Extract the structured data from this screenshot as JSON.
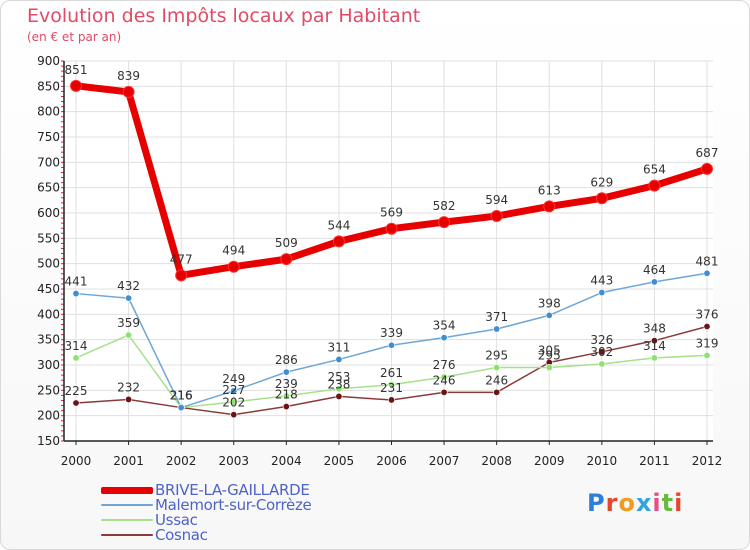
{
  "header": {
    "title": "Evolution des Impôts locaux par Habitant",
    "subtitle": "(en € et par an)"
  },
  "logo": {
    "text": "Proxiti",
    "letter_colors": [
      "#2e7fd6",
      "#e8452d",
      "#f29b1d",
      "#33a3dc",
      "#e84c8a",
      "#68b93f",
      "#e8452d"
    ]
  },
  "colors": {
    "title": "#e24a66",
    "legend_text": "#4d63c8",
    "grid": "#e0e0e0",
    "axis": "#222222"
  },
  "chart_data": {
    "type": "line",
    "title": "Evolution des Impôts locaux par Habitant",
    "subtitle": "(en € et par an)",
    "categories": [
      "2000",
      "2001",
      "2002",
      "2003",
      "2004",
      "2005",
      "2006",
      "2007",
      "2008",
      "2009",
      "2010",
      "2011",
      "2012"
    ],
    "ylim": [
      150,
      900
    ],
    "yticks": [
      150,
      200,
      250,
      300,
      350,
      400,
      450,
      500,
      550,
      600,
      650,
      700,
      750,
      800,
      850,
      900
    ],
    "grid": true,
    "legend_position": "bottom-left",
    "series": [
      {
        "name": "BRIVE-LA-GAILLARDE",
        "color": "#e60000",
        "point_color": "#e60000",
        "width": 7,
        "values": [
          851,
          839,
          477,
          494,
          509,
          544,
          569,
          582,
          594,
          613,
          629,
          654,
          687
        ]
      },
      {
        "name": "Malemort-sur-Corrèze",
        "color": "#6ea6d6",
        "point_color": "#3e8ed6",
        "width": 1.5,
        "values": [
          441,
          432,
          216,
          249,
          286,
          311,
          339,
          354,
          371,
          398,
          443,
          464,
          481
        ]
      },
      {
        "name": "Ussac",
        "color": "#a6e08a",
        "point_color": "#8fe070",
        "width": 1.5,
        "values": [
          314,
          359,
          216,
          227,
          239,
          253,
          261,
          276,
          295,
          295,
          302,
          314,
          319
        ]
      },
      {
        "name": "Cosnac",
        "color": "#8b3a3a",
        "point_color": "#6b1414",
        "width": 1.5,
        "values": [
          225,
          232,
          216,
          202,
          218,
          238,
          231,
          246,
          246,
          305,
          326,
          348,
          376
        ]
      }
    ]
  }
}
